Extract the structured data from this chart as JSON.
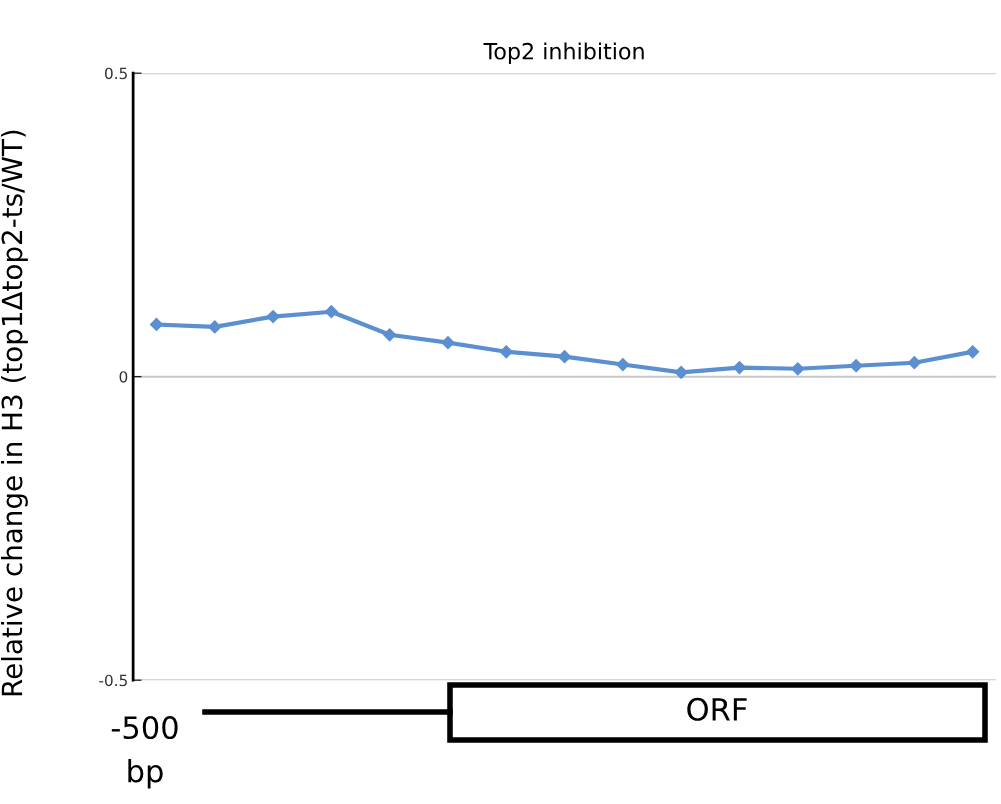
{
  "chart_data": {
    "type": "line",
    "title": "Top2 inhibition",
    "ylabel": "Relative change in H3 (top1Δtop2-ts/WT)",
    "categories": [
      null,
      null,
      null,
      null,
      null,
      null,
      null,
      null,
      null,
      null,
      null,
      null,
      null,
      null,
      null
    ],
    "series": [
      {
        "color": "#5b8fd0",
        "values": [
          0.086,
          0.082,
          0.099,
          0.107,
          0.069,
          0.056,
          0.041,
          0.033,
          0.02,
          0.007,
          0.015,
          0.013,
          0.018,
          0.023,
          0.041
        ]
      }
    ],
    "ylim": [
      -0.5,
      0.5
    ],
    "yticks": [
      -0.5,
      0,
      0.5
    ],
    "grid": "y",
    "marker": "diamond",
    "line_style": "solid",
    "tick_labels": "y",
    "annotations": [
      "-500\nbp",
      "ORF"
    ]
  }
}
